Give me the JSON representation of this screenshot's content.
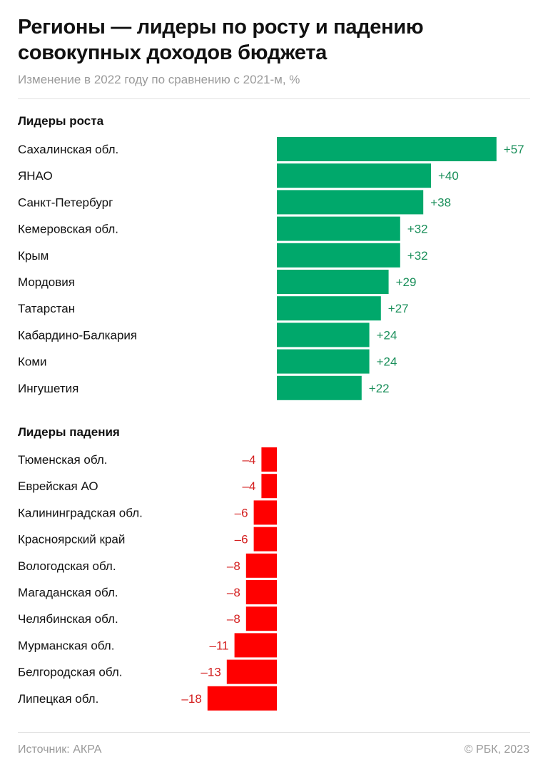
{
  "title": "Регионы — лидеры по росту и падению совокупных доходов бюджета",
  "subtitle": "Изменение в 2022 году по сравнению с 2021-м, %",
  "source": "Источник: АКРА",
  "copyright": "© РБК, 2023",
  "colors": {
    "growth": "#00A86B",
    "decline": "#FF0000",
    "growth_label": "#1A8F5A",
    "decline_label": "#D42020"
  },
  "chart_data": {
    "type": "bar",
    "orientation": "horizontal",
    "title": "Регионы — лидеры по росту и падению совокупных доходов бюджета",
    "subtitle": "Изменение в 2022 году по сравнению с 2021-м, %",
    "unit": "%",
    "groups": [
      {
        "name": "Лидеры роста",
        "categories": [
          "Сахалинская обл.",
          "ЯНАО",
          "Санкт-Петербург",
          "Кемеровская обл.",
          "Крым",
          "Мордовия",
          "Татарстан",
          "Кабардино-Балкария",
          "Коми",
          "Ингушетия"
        ],
        "values": [
          57,
          40,
          38,
          32,
          32,
          29,
          27,
          24,
          24,
          22
        ],
        "labels": [
          "+57",
          "+40",
          "+38",
          "+32",
          "+32",
          "+29",
          "+27",
          "+24",
          "+24",
          "+22"
        ]
      },
      {
        "name": "Лидеры падения",
        "categories": [
          "Тюменская обл.",
          "Еврейская АО",
          "Калининградская обл.",
          "Красноярский край",
          "Вологодская обл.",
          "Магаданская обл.",
          "Челябинская обл.",
          "Мурманская обл.",
          "Белгородская обл.",
          "Липецкая обл."
        ],
        "values": [
          -4,
          -4,
          -6,
          -6,
          -8,
          -8,
          -8,
          -11,
          -13,
          -18
        ],
        "labels": [
          "–4",
          "–4",
          "–6",
          "–6",
          "–8",
          "–8",
          "–8",
          "–11",
          "–13",
          "–18"
        ]
      }
    ]
  }
}
